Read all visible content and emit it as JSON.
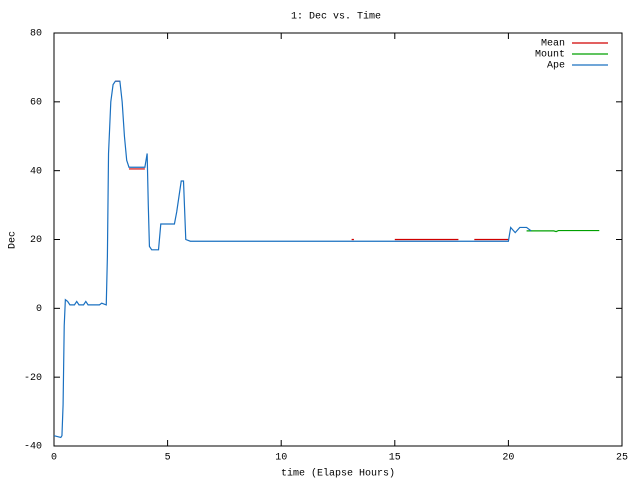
{
  "chart_data": {
    "type": "line",
    "title": "1: Dec vs. Time",
    "x_label": "time (Elapse Hours)",
    "y_label": "Dec",
    "xlim": [
      0,
      25
    ],
    "xticks": [
      0,
      5,
      10,
      15,
      20,
      25
    ],
    "ylim": [
      -40,
      80
    ],
    "yticks": [
      -40,
      -20,
      0,
      20,
      40,
      60,
      80
    ],
    "legend": "top-right",
    "series": [
      {
        "name": "Mean",
        "color": "#d00000",
        "x": [
          2.7,
          2.9,
          null,
          3.3,
          4.0,
          null,
          13.1,
          13.2,
          null,
          15.0,
          17.8,
          null,
          18.5,
          20.0
        ],
        "values": [
          66,
          66,
          null,
          40.5,
          40.5,
          null,
          20,
          20,
          null,
          20,
          20,
          null,
          20,
          20
        ]
      },
      {
        "name": "Mount",
        "color": "#00a000",
        "x": [
          20.8,
          22.0,
          22.1,
          22.2,
          24.0
        ],
        "values": [
          22.5,
          22.5,
          22.3,
          22.6,
          22.6
        ]
      },
      {
        "name": "Ape",
        "color": "#1a70c0",
        "x": [
          0,
          0.3,
          0.35,
          0.4,
          0.45,
          0.5,
          0.6,
          0.7,
          0.9,
          1.0,
          1.1,
          1.3,
          1.4,
          1.5,
          2.0,
          2.1,
          2.3,
          2.35,
          2.4,
          2.5,
          2.6,
          2.7,
          2.9,
          3.0,
          3.1,
          3.2,
          3.3,
          4.0,
          4.1,
          4.15,
          4.2,
          4.3,
          4.6,
          4.7,
          5.3,
          5.4,
          5.6,
          5.7,
          5.8,
          6.0,
          20.0,
          20.1,
          20.3,
          20.5,
          20.8,
          21.0
        ],
        "values": [
          -37,
          -37.5,
          -37,
          -28,
          -5,
          2.5,
          2,
          1,
          1,
          2,
          1,
          1,
          2,
          1,
          1,
          1.5,
          1,
          15,
          45,
          60,
          65,
          66,
          66,
          60,
          50,
          43,
          41,
          41,
          45,
          30,
          18,
          17,
          17,
          24.5,
          24.5,
          28,
          37,
          37,
          20,
          19.5,
          19.5,
          23.5,
          22,
          23.5,
          23.5,
          22.5
        ]
      }
    ]
  }
}
